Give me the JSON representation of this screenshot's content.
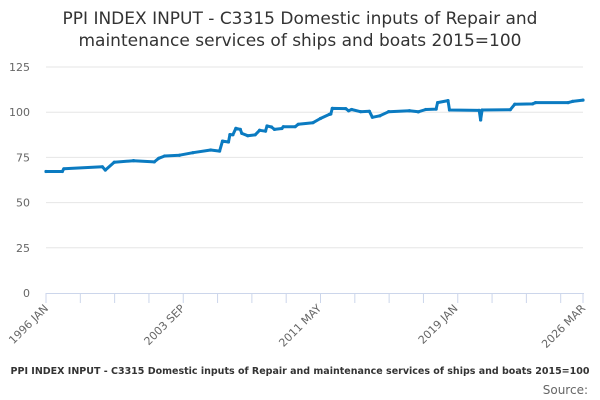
{
  "title_line1": "PPI INDEX INPUT - C3315 Domestic inputs of Repair and",
  "title_line2": "maintenance services of ships and boats 2015=100",
  "caption": "PPI INDEX INPUT - C3315 Domestic inputs of Repair and maintenance services of ships and boats 2015=100",
  "source_label": "Source:",
  "chart_data": {
    "type": "line",
    "title": "PPI INDEX INPUT - C3315 Domestic inputs of Repair and maintenance services of ships and boats 2015=100",
    "xlabel": "",
    "ylabel": "",
    "ylim": [
      0,
      125
    ],
    "xlim": [
      "1996-01",
      "2026-03"
    ],
    "y_ticks": [
      0,
      25,
      50,
      75,
      100,
      125
    ],
    "x_tick_labels": [
      {
        "date": "1996-01",
        "label": "1996 JAN"
      },
      {
        "date": "2003-09",
        "label": "2003 SEP"
      },
      {
        "date": "2011-05",
        "label": "2011 MAY"
      },
      {
        "date": "2019-01",
        "label": "2019 JAN"
      },
      {
        "date": "2026-03",
        "label": "2026 MAR"
      }
    ],
    "grid": true,
    "legend": "none",
    "color": "#0b7bc1",
    "points": [
      [
        "1996-01",
        67.2
      ],
      [
        "1996-12",
        67.2
      ],
      [
        "1997-01",
        68.7
      ],
      [
        "1999-03",
        69.8
      ],
      [
        "1999-05",
        68.0
      ],
      [
        "1999-11",
        72.3
      ],
      [
        "2000-12",
        73.2
      ],
      [
        "2002-02",
        72.5
      ],
      [
        "2002-05",
        74.5
      ],
      [
        "2002-09",
        75.8
      ],
      [
        "2003-07",
        76.2
      ],
      [
        "2004-04",
        77.6
      ],
      [
        "2005-04",
        79.1
      ],
      [
        "2005-10",
        78.5
      ],
      [
        "2005-12",
        84.0
      ],
      [
        "2006-04",
        83.5
      ],
      [
        "2006-05",
        87.6
      ],
      [
        "2006-07",
        87.5
      ],
      [
        "2006-09",
        91.1
      ],
      [
        "2006-12",
        90.5
      ],
      [
        "2007-01",
        88.3
      ],
      [
        "2007-05",
        87.0
      ],
      [
        "2007-10",
        87.5
      ],
      [
        "2008-01",
        90.0
      ],
      [
        "2008-05",
        89.5
      ],
      [
        "2008-06",
        92.4
      ],
      [
        "2008-09",
        91.8
      ],
      [
        "2008-11",
        90.5
      ],
      [
        "2009-04",
        91.0
      ],
      [
        "2009-05",
        92.0
      ],
      [
        "2010-01",
        92.0
      ],
      [
        "2010-03",
        93.3
      ],
      [
        "2011-01",
        94.2
      ],
      [
        "2011-06",
        96.5
      ],
      [
        "2011-12",
        98.8
      ],
      [
        "2012-01",
        99.0
      ],
      [
        "2012-02",
        102.1
      ],
      [
        "2012-11",
        102.0
      ],
      [
        "2013-01",
        100.8
      ],
      [
        "2013-03",
        101.5
      ],
      [
        "2013-09",
        100.3
      ],
      [
        "2014-03",
        100.5
      ],
      [
        "2014-05",
        97.2
      ],
      [
        "2014-10",
        98.0
      ],
      [
        "2015-04",
        100.3
      ],
      [
        "2016-06",
        100.8
      ],
      [
        "2016-12",
        100.2
      ],
      [
        "2017-05",
        101.5
      ],
      [
        "2017-12",
        101.7
      ],
      [
        "2018-01",
        105.3
      ],
      [
        "2018-08",
        106.4
      ],
      [
        "2018-09",
        101.2
      ],
      [
        "2020-05",
        101.0
      ],
      [
        "2020-06",
        95.7
      ],
      [
        "2020-07",
        101.2
      ],
      [
        "2022-02",
        101.4
      ],
      [
        "2022-05",
        104.4
      ],
      [
        "2023-05",
        104.6
      ],
      [
        "2023-07",
        105.3
      ],
      [
        "2025-05",
        105.3
      ],
      [
        "2025-08",
        106.0
      ],
      [
        "2026-03",
        106.7
      ]
    ]
  }
}
